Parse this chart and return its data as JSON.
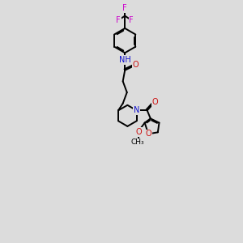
{
  "bg_color": "#dcdcdc",
  "atom_colors": {
    "C": "#000000",
    "N": "#1010cc",
    "O": "#cc1010",
    "F": "#cc00cc",
    "H": "#008888"
  },
  "bond_color": "#000000",
  "bond_width": 1.4,
  "xlim": [
    0,
    10
  ],
  "ylim": [
    0,
    14
  ],
  "figsize": [
    3.0,
    3.0
  ],
  "dpi": 100
}
